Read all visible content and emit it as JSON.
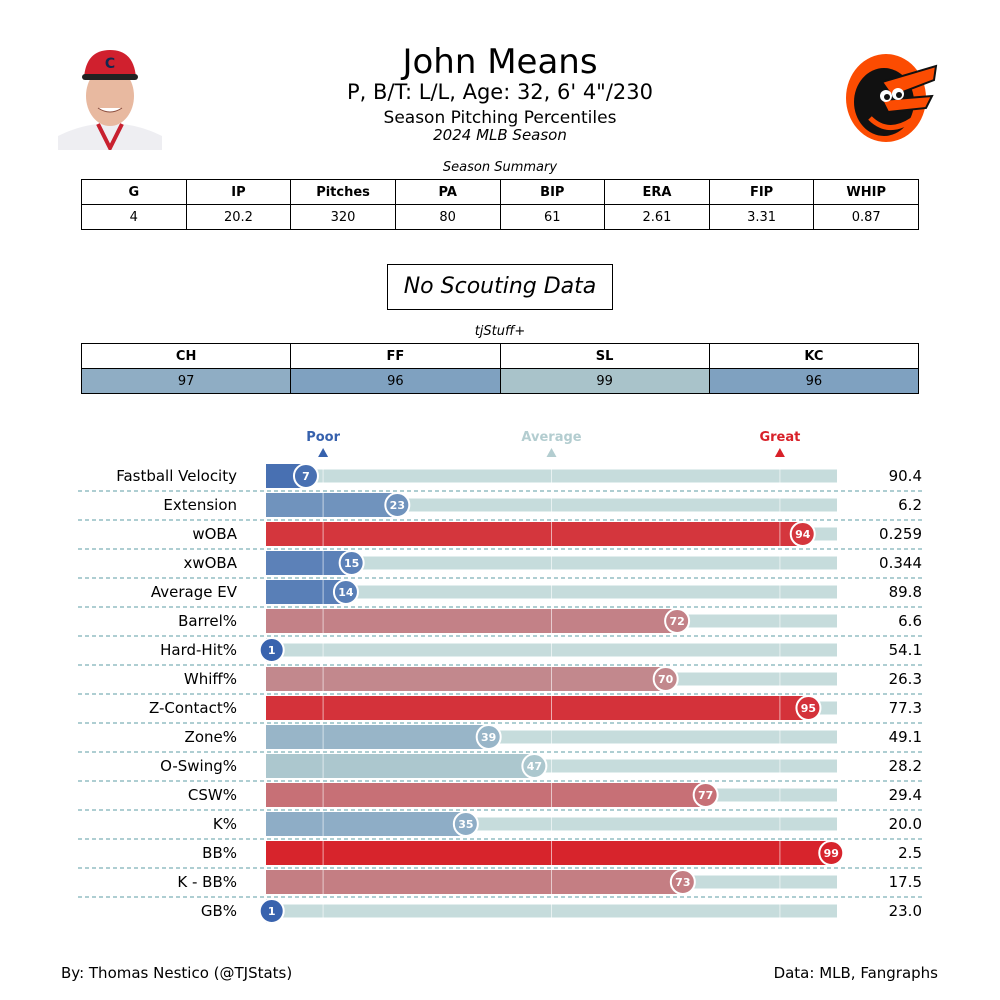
{
  "header": {
    "name": "John Means",
    "bio": "P, B/T: L/L, Age: 32, 6' 4\"/230",
    "subtitle": "Season Pitching Percentiles",
    "season": "2024 MLB Season"
  },
  "summary": {
    "title": "Season Summary",
    "headers": [
      "G",
      "IP",
      "Pitches",
      "PA",
      "BIP",
      "ERA",
      "FIP",
      "WHIP"
    ],
    "values": [
      "4",
      "20.2",
      "320",
      "80",
      "61",
      "2.61",
      "3.31",
      "0.87"
    ]
  },
  "scouting": {
    "text": "No Scouting Data"
  },
  "tjstuff": {
    "title": "tjStuff+",
    "headers": [
      "CH",
      "FF",
      "SL",
      "KC"
    ],
    "values": [
      "97",
      "96",
      "99",
      "96"
    ],
    "colors": [
      "#8fadc4",
      "#7fa1c0",
      "#a9c3ca",
      "#7fa1c0"
    ]
  },
  "chart_data": {
    "type": "bar",
    "scale_labels": [
      {
        "label": "Poor",
        "percentile": 10,
        "color": "#3661ad"
      },
      {
        "label": "Average",
        "percentile": 50,
        "color": "#b3cdd0"
      },
      {
        "label": "Great",
        "percentile": 90,
        "color": "#d82129"
      }
    ],
    "xlim": [
      0,
      100
    ],
    "categories": [
      "Fastball Velocity",
      "Extension",
      "wOBA",
      "xwOBA",
      "Average EV",
      "Barrel%",
      "Hard-Hit%",
      "Whiff%",
      "Z-Contact%",
      "Zone%",
      "O-Swing%",
      "CSW%",
      "K%",
      "BB%",
      "K - BB%",
      "GB%"
    ],
    "percentiles": [
      7,
      23,
      94,
      15,
      14,
      72,
      1,
      70,
      95,
      39,
      47,
      77,
      35,
      99,
      73,
      1
    ],
    "values": [
      "90.4",
      "6.2",
      "0.259",
      "0.344",
      "89.8",
      "6.6",
      "54.1",
      "26.3",
      "77.3",
      "49.1",
      "28.2",
      "29.4",
      "20.0",
      "2.5",
      "17.5",
      "23.0"
    ],
    "colors": {
      "low": "#3661ad",
      "mid": "#b3cdd0",
      "high": "#d82129",
      "track": "#c6dcdc"
    }
  },
  "footer": {
    "left": "By: Thomas Nestico (@TJStats)",
    "right": "Data: MLB, Fangraphs"
  }
}
